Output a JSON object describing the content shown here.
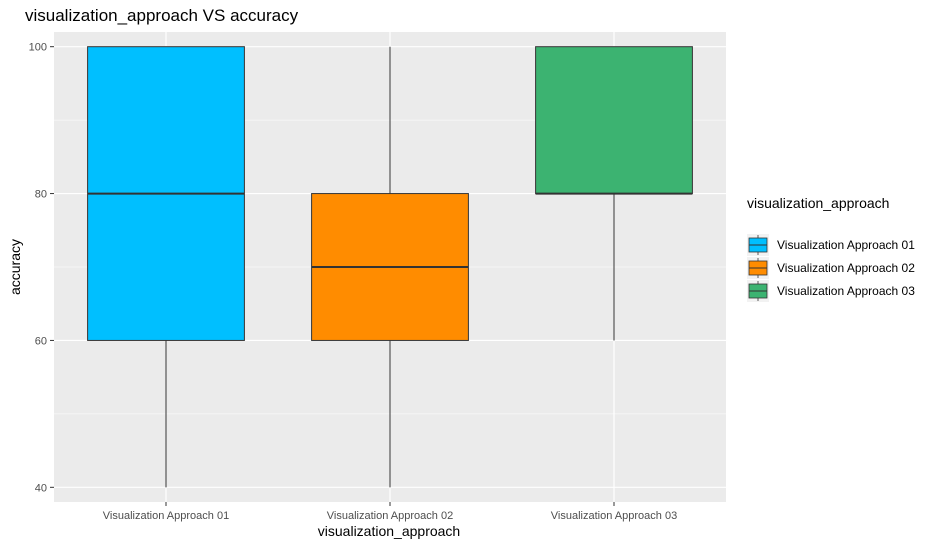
{
  "chart_data": {
    "type": "boxplot",
    "title": "visualization_approach VS accuracy",
    "xlabel": "visualization_approach",
    "ylabel": "accuracy",
    "ylim": [
      38,
      102
    ],
    "yticks": [
      40,
      60,
      80,
      100
    ],
    "grid": true,
    "categories": [
      "Visualization Approach 01",
      "Visualization Approach 02",
      "Visualization Approach 03"
    ],
    "boxes": [
      {
        "category": "Visualization Approach 01",
        "min": 40,
        "q1": 60,
        "median": 80,
        "q3": 100,
        "max": 100,
        "color": "#00BFFF"
      },
      {
        "category": "Visualization Approach 02",
        "min": 40,
        "q1": 60,
        "median": 70,
        "q3": 80,
        "max": 100,
        "color": "#FF8C00"
      },
      {
        "category": "Visualization Approach 03",
        "min": 60,
        "q1": 80,
        "median": 80,
        "q3": 100,
        "max": 100,
        "color": "#3CB371"
      }
    ],
    "legend": {
      "title": "visualization_approach",
      "position": "right",
      "entries": [
        {
          "label": "Visualization Approach 01",
          "color": "#00BFFF"
        },
        {
          "label": "Visualization Approach 02",
          "color": "#FF8C00"
        },
        {
          "label": "Visualization Approach 03",
          "color": "#3CB371"
        }
      ]
    },
    "colors": {
      "panel": "#EBEBEB",
      "grid": "#FFFFFF",
      "box_stroke": "#333333"
    }
  }
}
